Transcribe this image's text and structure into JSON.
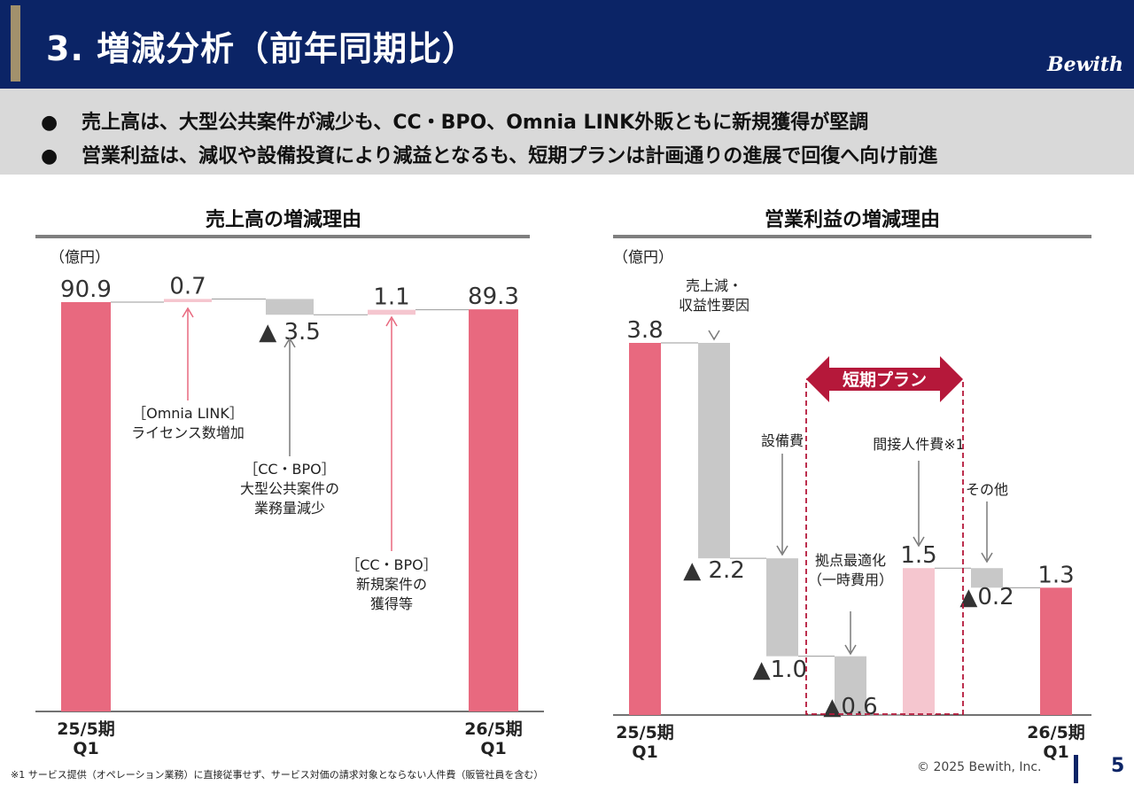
{
  "header": {
    "title": "3. 増減分析（前年同期比）",
    "logo": "Bewith"
  },
  "bullets": [
    "売上高は、大型公共案件が減少も、CC・BPO、Omnia LINK外販ともに新規獲得が堅調",
    "営業利益は、減収や設備投資により減益となるも、短期プランは計画通りの進展で回復へ向け前進"
  ],
  "colors": {
    "navy": "#0b2466",
    "gold": "#a2916c",
    "pink": "#e8697f",
    "light_pink": "#f5c6cf",
    "gray": "#c8c8c8",
    "plan": "#b5183a"
  },
  "chart_data": [
    {
      "type": "waterfall",
      "title": "売上高の増減理由",
      "unit": "（億円）",
      "ylim": [
        0,
        95
      ],
      "steps": [
        {
          "kind": "total",
          "value": 90.9,
          "label": "90.9",
          "category": "25/5期\nQ1"
        },
        {
          "kind": "increase",
          "value": 0.7,
          "label": "0.7",
          "annotation": "［Omnia LINK］\nライセンス数増加"
        },
        {
          "kind": "decrease",
          "value": -3.5,
          "label": "▲ 3.5",
          "annotation": "［CC・BPO］\n大型公共案件の\n業務量減少"
        },
        {
          "kind": "increase",
          "value": 1.1,
          "label": "1.1",
          "annotation": "［CC・BPO］\n新規案件の\n獲得等"
        },
        {
          "kind": "total",
          "value": 89.3,
          "label": "89.3",
          "category": "26/5期\nQ1"
        }
      ]
    },
    {
      "type": "waterfall",
      "title": "営業利益の増減理由",
      "unit": "（億円）",
      "ylim": [
        0,
        4.2
      ],
      "steps": [
        {
          "kind": "total",
          "value": 3.8,
          "label": "3.8",
          "category": "25/5期\nQ1"
        },
        {
          "kind": "decrease",
          "value": -2.2,
          "label": "▲ 2.2",
          "annotation": "売上減・\n収益性要因"
        },
        {
          "kind": "decrease",
          "value": -1.0,
          "label": "▲1.0",
          "annotation": "設備費"
        },
        {
          "kind": "decrease",
          "value": -0.6,
          "label": "▲0.6",
          "annotation": "拠点最適化\n（一時費用）"
        },
        {
          "kind": "increase",
          "value": 1.5,
          "label": "1.5",
          "annotation": "間接人件費※1"
        },
        {
          "kind": "decrease",
          "value": -0.2,
          "label": "▲0.2",
          "annotation": "その他"
        },
        {
          "kind": "total",
          "value": 1.3,
          "label": "1.3",
          "category": "26/5期\nQ1"
        }
      ],
      "highlight": {
        "label": "短期プラン",
        "from_step": 3,
        "to_step": 4
      }
    }
  ],
  "footer": {
    "footnote": "※1 サービス提供（オペレーション業務）に直接従事せず、サービス対価の請求対象とならない人件費（販管社員を含む）",
    "copyright": "© 2025 Bewith, Inc.",
    "page": "5"
  }
}
